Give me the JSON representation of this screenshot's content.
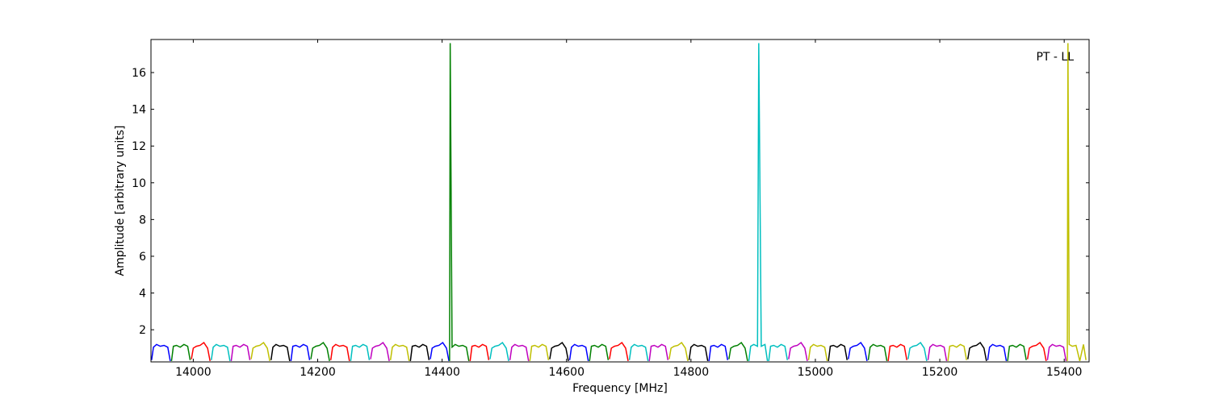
{
  "chart_data": {
    "type": "line",
    "annotation": "PT - LL",
    "x_label": "Frequency [MHz]",
    "y_label": "Amplitude [arbitrary units]",
    "xlim": [
      13932,
      15440
    ],
    "ylim": [
      0.25,
      17.8
    ],
    "xticks": [
      14000,
      14200,
      14400,
      14600,
      14800,
      15000,
      15200,
      15400
    ],
    "yticks": [
      2,
      4,
      6,
      8,
      10,
      12,
      14,
      16
    ],
    "series": [
      {
        "color": "#0000ff",
        "x": [
          13933,
          13936,
          13941,
          13947,
          13953,
          13959,
          13963
        ],
        "values": [
          0.35,
          1.05,
          1.2,
          1.1,
          1.15,
          1.05,
          0.3
        ]
      },
      {
        "color": "#008000",
        "x": [
          13965,
          13968,
          13973,
          13979,
          13985,
          13991,
          13995
        ],
        "values": [
          0.3,
          1.1,
          1.15,
          1.05,
          1.2,
          1.1,
          0.35
        ]
      },
      {
        "color": "#ff0000",
        "x": [
          13997,
          14000,
          14005,
          14011,
          14017,
          14023,
          14027
        ],
        "values": [
          0.4,
          1.0,
          1.1,
          1.15,
          1.3,
          1.0,
          0.3
        ]
      },
      {
        "color": "#00bfbf",
        "x": [
          14029,
          14032,
          14037,
          14043,
          14049,
          14055,
          14059
        ],
        "values": [
          0.35,
          1.05,
          1.2,
          1.1,
          1.15,
          1.05,
          0.3
        ]
      },
      {
        "color": "#bf00bf",
        "x": [
          14061,
          14064,
          14069,
          14075,
          14081,
          14087,
          14091
        ],
        "values": [
          0.3,
          1.1,
          1.15,
          1.05,
          1.2,
          1.1,
          0.35
        ]
      },
      {
        "color": "#bfbf00",
        "x": [
          14093,
          14096,
          14101,
          14107,
          14113,
          14119,
          14123
        ],
        "values": [
          0.4,
          1.0,
          1.1,
          1.15,
          1.3,
          1.0,
          0.3
        ]
      },
      {
        "color": "#000000",
        "x": [
          14125,
          14128,
          14133,
          14139,
          14145,
          14151,
          14155
        ],
        "values": [
          0.35,
          1.05,
          1.2,
          1.1,
          1.15,
          1.05,
          0.3
        ]
      },
      {
        "color": "#0000ff",
        "x": [
          14157,
          14160,
          14165,
          14171,
          14177,
          14183,
          14187
        ],
        "values": [
          0.3,
          1.1,
          1.15,
          1.05,
          1.2,
          1.1,
          0.35
        ]
      },
      {
        "color": "#008000",
        "x": [
          14189,
          14192,
          14197,
          14203,
          14209,
          14215,
          14219
        ],
        "values": [
          0.4,
          1.0,
          1.1,
          1.15,
          1.3,
          1.0,
          0.3
        ]
      },
      {
        "color": "#ff0000",
        "x": [
          14221,
          14224,
          14229,
          14235,
          14241,
          14247,
          14251
        ],
        "values": [
          0.35,
          1.05,
          1.2,
          1.1,
          1.15,
          1.05,
          0.3
        ]
      },
      {
        "color": "#00bfbf",
        "x": [
          14253,
          14256,
          14261,
          14267,
          14273,
          14279,
          14283
        ],
        "values": [
          0.3,
          1.1,
          1.15,
          1.05,
          1.2,
          1.1,
          0.35
        ]
      },
      {
        "color": "#bf00bf",
        "x": [
          14285,
          14288,
          14293,
          14299,
          14305,
          14311,
          14315
        ],
        "values": [
          0.4,
          1.0,
          1.1,
          1.15,
          1.3,
          1.0,
          0.3
        ]
      },
      {
        "color": "#bfbf00",
        "x": [
          14317,
          14320,
          14325,
          14331,
          14337,
          14343,
          14347
        ],
        "values": [
          0.35,
          1.05,
          1.2,
          1.1,
          1.15,
          1.05,
          0.3
        ]
      },
      {
        "color": "#000000",
        "x": [
          14349,
          14352,
          14357,
          14363,
          14369,
          14375,
          14379
        ],
        "values": [
          0.3,
          1.1,
          1.15,
          1.05,
          1.2,
          1.1,
          0.35
        ]
      },
      {
        "color": "#0000ff",
        "x": [
          14381,
          14384,
          14389,
          14395,
          14401,
          14407,
          14411
        ],
        "values": [
          0.4,
          1.0,
          1.1,
          1.15,
          1.3,
          1.0,
          0.3
        ]
      },
      {
        "color": "#008000",
        "x": [
          14412,
          14413,
          14416,
          14421,
          14427,
          14433,
          14439,
          14443
        ],
        "values": [
          0.3,
          17.6,
          1.05,
          1.2,
          1.1,
          1.15,
          1.05,
          0.3
        ]
      },
      {
        "color": "#ff0000",
        "x": [
          14445,
          14448,
          14453,
          14459,
          14465,
          14471,
          14475
        ],
        "values": [
          0.3,
          1.1,
          1.15,
          1.05,
          1.2,
          1.1,
          0.35
        ]
      },
      {
        "color": "#00bfbf",
        "x": [
          14477,
          14480,
          14485,
          14491,
          14497,
          14503,
          14507
        ],
        "values": [
          0.4,
          1.0,
          1.1,
          1.15,
          1.3,
          1.0,
          0.3
        ]
      },
      {
        "color": "#bf00bf",
        "x": [
          14509,
          14512,
          14517,
          14523,
          14529,
          14535,
          14539
        ],
        "values": [
          0.35,
          1.05,
          1.2,
          1.1,
          1.15,
          1.05,
          0.3
        ]
      },
      {
        "color": "#bfbf00",
        "x": [
          14541,
          14544,
          14549,
          14555,
          14561,
          14567,
          14571
        ],
        "values": [
          0.3,
          1.1,
          1.15,
          1.05,
          1.2,
          1.1,
          0.35
        ]
      },
      {
        "color": "#000000",
        "x": [
          14573,
          14576,
          14581,
          14587,
          14593,
          14599,
          14603
        ],
        "values": [
          0.4,
          1.0,
          1.1,
          1.15,
          1.3,
          1.0,
          0.3
        ]
      },
      {
        "color": "#0000ff",
        "x": [
          14605,
          14608,
          14613,
          14619,
          14625,
          14631,
          14635
        ],
        "values": [
          0.35,
          1.05,
          1.2,
          1.1,
          1.15,
          1.05,
          0.3
        ]
      },
      {
        "color": "#008000",
        "x": [
          14637,
          14640,
          14645,
          14651,
          14657,
          14663,
          14667
        ],
        "values": [
          0.3,
          1.1,
          1.15,
          1.05,
          1.2,
          1.1,
          0.35
        ]
      },
      {
        "color": "#ff0000",
        "x": [
          14669,
          14672,
          14677,
          14683,
          14689,
          14695,
          14699
        ],
        "values": [
          0.4,
          1.0,
          1.1,
          1.15,
          1.3,
          1.0,
          0.3
        ]
      },
      {
        "color": "#00bfbf",
        "x": [
          14701,
          14704,
          14709,
          14715,
          14721,
          14727,
          14731
        ],
        "values": [
          0.35,
          1.05,
          1.2,
          1.1,
          1.15,
          1.05,
          0.3
        ]
      },
      {
        "color": "#bf00bf",
        "x": [
          14733,
          14736,
          14741,
          14747,
          14753,
          14759,
          14763
        ],
        "values": [
          0.3,
          1.1,
          1.15,
          1.05,
          1.2,
          1.1,
          0.35
        ]
      },
      {
        "color": "#bfbf00",
        "x": [
          14765,
          14768,
          14773,
          14779,
          14785,
          14791,
          14795
        ],
        "values": [
          0.4,
          1.0,
          1.1,
          1.15,
          1.3,
          1.0,
          0.3
        ]
      },
      {
        "color": "#000000",
        "x": [
          14797,
          14800,
          14805,
          14811,
          14817,
          14823,
          14827
        ],
        "values": [
          0.35,
          1.05,
          1.2,
          1.1,
          1.15,
          1.05,
          0.3
        ]
      },
      {
        "color": "#0000ff",
        "x": [
          14829,
          14832,
          14837,
          14843,
          14849,
          14855,
          14859
        ],
        "values": [
          0.3,
          1.1,
          1.15,
          1.05,
          1.2,
          1.1,
          0.35
        ]
      },
      {
        "color": "#008000",
        "x": [
          14861,
          14864,
          14869,
          14875,
          14881,
          14887,
          14891
        ],
        "values": [
          0.4,
          1.0,
          1.1,
          1.15,
          1.3,
          1.0,
          0.3
        ]
      },
      {
        "color": "#00bfbf",
        "x": [
          14893,
          14896,
          14901,
          14907,
          14909,
          14913,
          14919,
          14923
        ],
        "values": [
          0.3,
          1.1,
          1.2,
          1.1,
          17.6,
          1.1,
          1.2,
          0.3
        ]
      },
      {
        "color": "#00bfbf",
        "x": [
          14925,
          14928,
          14933,
          14939,
          14945,
          14951,
          14955
        ],
        "values": [
          0.3,
          1.1,
          1.15,
          1.05,
          1.2,
          1.1,
          0.35
        ]
      },
      {
        "color": "#bf00bf",
        "x": [
          14957,
          14960,
          14965,
          14971,
          14977,
          14983,
          14987
        ],
        "values": [
          0.4,
          1.0,
          1.1,
          1.15,
          1.3,
          1.0,
          0.3
        ]
      },
      {
        "color": "#bfbf00",
        "x": [
          14989,
          14992,
          14997,
          15003,
          15009,
          15015,
          15019
        ],
        "values": [
          0.35,
          1.05,
          1.2,
          1.1,
          1.15,
          1.05,
          0.3
        ]
      },
      {
        "color": "#000000",
        "x": [
          15021,
          15024,
          15029,
          15035,
          15041,
          15047,
          15051
        ],
        "values": [
          0.3,
          1.1,
          1.15,
          1.05,
          1.2,
          1.1,
          0.35
        ]
      },
      {
        "color": "#0000ff",
        "x": [
          15053,
          15056,
          15061,
          15067,
          15073,
          15079,
          15083
        ],
        "values": [
          0.4,
          1.0,
          1.1,
          1.15,
          1.3,
          1.0,
          0.3
        ]
      },
      {
        "color": "#008000",
        "x": [
          15085,
          15088,
          15093,
          15099,
          15105,
          15111,
          15115
        ],
        "values": [
          0.35,
          1.05,
          1.2,
          1.1,
          1.15,
          1.05,
          0.3
        ]
      },
      {
        "color": "#ff0000",
        "x": [
          15117,
          15120,
          15125,
          15131,
          15137,
          15143,
          15147
        ],
        "values": [
          0.3,
          1.1,
          1.15,
          1.05,
          1.2,
          1.1,
          0.35
        ]
      },
      {
        "color": "#00bfbf",
        "x": [
          15149,
          15152,
          15157,
          15163,
          15169,
          15175,
          15179
        ],
        "values": [
          0.4,
          1.0,
          1.1,
          1.15,
          1.3,
          1.0,
          0.3
        ]
      },
      {
        "color": "#bf00bf",
        "x": [
          15181,
          15184,
          15189,
          15195,
          15201,
          15207,
          15211
        ],
        "values": [
          0.35,
          1.05,
          1.2,
          1.1,
          1.15,
          1.05,
          0.3
        ]
      },
      {
        "color": "#bfbf00",
        "x": [
          15213,
          15216,
          15221,
          15227,
          15233,
          15239,
          15243
        ],
        "values": [
          0.3,
          1.1,
          1.15,
          1.05,
          1.2,
          1.1,
          0.35
        ]
      },
      {
        "color": "#000000",
        "x": [
          15245,
          15248,
          15253,
          15259,
          15265,
          15271,
          15275
        ],
        "values": [
          0.4,
          1.0,
          1.1,
          1.15,
          1.3,
          1.0,
          0.3
        ]
      },
      {
        "color": "#0000ff",
        "x": [
          15277,
          15280,
          15285,
          15291,
          15297,
          15303,
          15307
        ],
        "values": [
          0.35,
          1.05,
          1.2,
          1.1,
          1.15,
          1.05,
          0.3
        ]
      },
      {
        "color": "#008000",
        "x": [
          15309,
          15312,
          15317,
          15323,
          15329,
          15335,
          15339
        ],
        "values": [
          0.3,
          1.1,
          1.15,
          1.05,
          1.2,
          1.1,
          0.35
        ]
      },
      {
        "color": "#ff0000",
        "x": [
          15341,
          15344,
          15349,
          15355,
          15361,
          15367,
          15371
        ],
        "values": [
          0.4,
          1.0,
          1.1,
          1.15,
          1.3,
          1.0,
          0.3
        ]
      },
      {
        "color": "#bf00bf",
        "x": [
          15373,
          15376,
          15381,
          15387,
          15393,
          15399,
          15403
        ],
        "values": [
          0.35,
          1.05,
          1.2,
          1.1,
          1.15,
          1.05,
          0.3
        ]
      },
      {
        "color": "#bfbf00",
        "x": [
          15405,
          15406,
          15408,
          15413,
          15419,
          15425,
          15431,
          15435
        ],
        "values": [
          0.3,
          17.6,
          1.2,
          1.1,
          1.15,
          0.3,
          1.2,
          0.35
        ]
      }
    ]
  }
}
